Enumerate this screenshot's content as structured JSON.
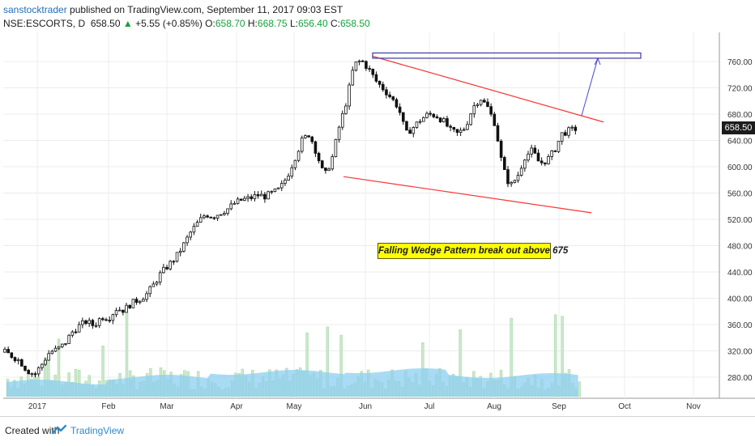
{
  "header": {
    "author": "sanstocktrader",
    "published": "published on TradingView.com, September 11, 2017 09:03 EST",
    "symbol": "NSE:ESCORTS, D",
    "last": "658.50",
    "change_arrow": "▲",
    "change": "+5.55 (+0.85%)",
    "o_label": "O:",
    "o": "658.70",
    "h_label": "H:",
    "h": "668.75",
    "l_label": "L:",
    "l": "656.40",
    "c_label": "C:",
    "c": "658.50"
  },
  "annotation": "Falling Wedge Pattern break out above 675",
  "last_price_tag": "658.50",
  "footer": {
    "created": "Created with",
    "brand": "TradingView"
  },
  "colors": {
    "trendline": "#ff3333",
    "target": "#3a3aa0",
    "volume_ma": "#8ccff0",
    "volume_bar": "#c9e8c9",
    "grid": "#ececec"
  },
  "chart_data": {
    "type": "candlestick",
    "y_axis": {
      "ticks": [
        "280.00",
        "320.00",
        "360.00",
        "400.00",
        "440.00",
        "480.00",
        "520.00",
        "560.00",
        "600.00",
        "640.00",
        "680.00",
        "720.00",
        "760.00"
      ],
      "min": 245,
      "max": 785
    },
    "x_axis": {
      "ticks": [
        "2017",
        "Feb",
        "Mar",
        "Apr",
        "May",
        "Jun",
        "Jul",
        "Aug",
        "Sep",
        "Oct",
        "Nov"
      ]
    },
    "close_path": [
      [
        0,
        318
      ],
      [
        1,
        312
      ],
      [
        2,
        305
      ],
      [
        3,
        290
      ],
      [
        4,
        284
      ],
      [
        5,
        300
      ],
      [
        6,
        318
      ],
      [
        7,
        322
      ],
      [
        8,
        330
      ],
      [
        9,
        348
      ],
      [
        10,
        358
      ],
      [
        11,
        365
      ],
      [
        12,
        358
      ],
      [
        13,
        372
      ],
      [
        14,
        370
      ],
      [
        15,
        384
      ],
      [
        16,
        382
      ],
      [
        17,
        392
      ],
      [
        18,
        398
      ],
      [
        19,
        405
      ],
      [
        20,
        420
      ],
      [
        21,
        438
      ],
      [
        22,
        450
      ],
      [
        23,
        462
      ],
      [
        24,
        480
      ],
      [
        25,
        500
      ],
      [
        26,
        515
      ],
      [
        27,
        528
      ],
      [
        28,
        524
      ],
      [
        29,
        530
      ],
      [
        30,
        536
      ],
      [
        31,
        545
      ],
      [
        32,
        550
      ],
      [
        33,
        552
      ],
      [
        34,
        557
      ],
      [
        35,
        555
      ],
      [
        36,
        560
      ],
      [
        37,
        566
      ],
      [
        38,
        585
      ],
      [
        39,
        612
      ],
      [
        40,
        640
      ],
      [
        41,
        650
      ],
      [
        42,
        620
      ],
      [
        43,
        585
      ],
      [
        44,
        610
      ],
      [
        45,
        660
      ],
      [
        46,
        700
      ],
      [
        47,
        755
      ],
      [
        48,
        762
      ],
      [
        49,
        748
      ],
      [
        50,
        730
      ],
      [
        51,
        718
      ],
      [
        52,
        705
      ],
      [
        53,
        690
      ],
      [
        54,
        650
      ],
      [
        55,
        660
      ],
      [
        56,
        672
      ],
      [
        57,
        680
      ],
      [
        58,
        678
      ],
      [
        59,
        670
      ],
      [
        60,
        655
      ],
      [
        61,
        650
      ],
      [
        62,
        660
      ],
      [
        63,
        690
      ],
      [
        64,
        705
      ],
      [
        65,
        690
      ],
      [
        66,
        665
      ],
      [
        67,
        600
      ],
      [
        68,
        570
      ],
      [
        69,
        585
      ],
      [
        70,
        615
      ],
      [
        71,
        625
      ],
      [
        72,
        605
      ],
      [
        73,
        610
      ],
      [
        74,
        625
      ],
      [
        75,
        650
      ],
      [
        76,
        655
      ],
      [
        77,
        658
      ]
    ],
    "trendlines": [
      {
        "name": "upper",
        "from": [
          "Jun",
          768
        ],
        "to": [
          "Sep",
          668
        ]
      },
      {
        "name": "lower",
        "from": [
          "May",
          585
        ],
        "to": [
          "Sep",
          530
        ]
      }
    ],
    "target_box": {
      "from_price": 765,
      "to_price": 773
    },
    "volume_note": "volume bars with moving average at bottom"
  }
}
